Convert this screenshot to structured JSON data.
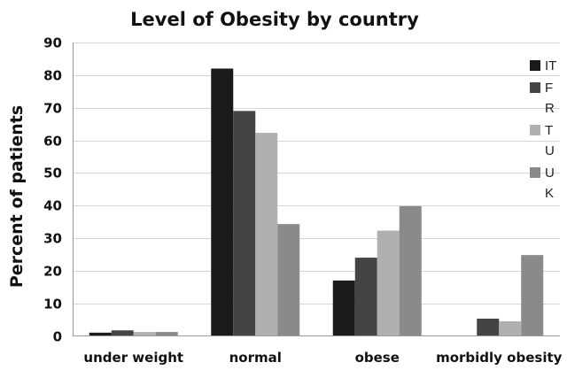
{
  "chart_data": {
    "type": "bar",
    "title": "Level of Obesity by country",
    "xlabel": "",
    "ylabel": "Percent of patients",
    "categories": [
      "under weight",
      "normal",
      "obese",
      "morbidly obesity"
    ],
    "ylim": [
      0,
      90
    ],
    "yticks": [
      0,
      10,
      20,
      30,
      40,
      50,
      60,
      70,
      80,
      90
    ],
    "grid": true,
    "legend_position": "right",
    "series": [
      {
        "name": "IT",
        "legend_lines": [
          "IT"
        ],
        "color": "#1a1a1a",
        "values": [
          1,
          82,
          17,
          0
        ]
      },
      {
        "name": "FR",
        "legend_lines": [
          "F",
          "R"
        ],
        "color": "#444444",
        "values": [
          1.7,
          69,
          24,
          5.3
        ]
      },
      {
        "name": "TU",
        "legend_lines": [
          "T",
          "U"
        ],
        "color": "#b0b0b0",
        "values": [
          1.2,
          62.3,
          32.3,
          4.5
        ]
      },
      {
        "name": "UK",
        "legend_lines": [
          "U",
          "K"
        ],
        "color": "#8a8a8a",
        "values": [
          1.2,
          34.3,
          39.8,
          24.8
        ]
      }
    ]
  }
}
